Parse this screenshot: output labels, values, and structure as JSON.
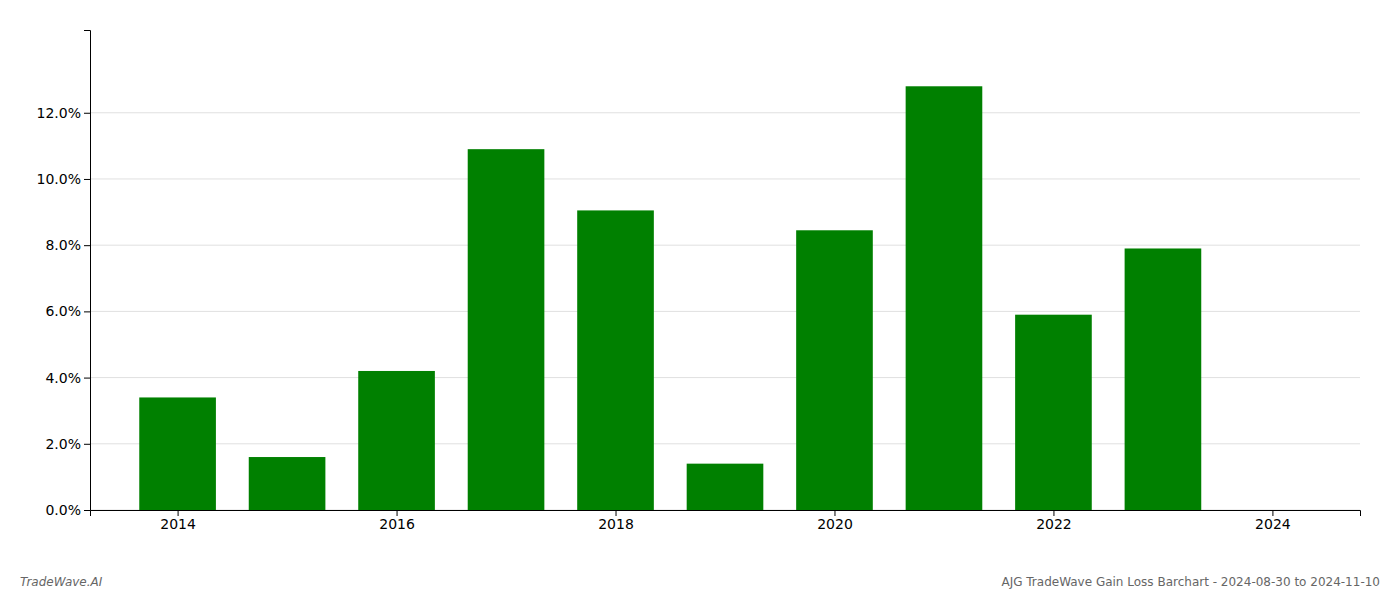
{
  "chart_data": {
    "type": "bar",
    "x": [
      2014,
      2015,
      2016,
      2017,
      2018,
      2019,
      2020,
      2021,
      2022,
      2023
    ],
    "values": [
      0.034,
      0.016,
      0.042,
      0.109,
      0.0905,
      0.014,
      0.0845,
      0.128,
      0.059,
      0.079
    ],
    "color": "#008000",
    "xlim": [
      2013.2,
      2024.8
    ],
    "xticks": [
      2014,
      2016,
      2018,
      2020,
      2022,
      2024
    ],
    "ylim": [
      0.0,
      0.145
    ],
    "yticks": [
      {
        "value": 0.0,
        "label": "0.0%"
      },
      {
        "value": 0.02,
        "label": "2.0%"
      },
      {
        "value": 0.04,
        "label": "4.0%"
      },
      {
        "value": 0.06,
        "label": "6.0%"
      },
      {
        "value": 0.08,
        "label": "8.0%"
      },
      {
        "value": 0.1,
        "label": "10.0%"
      },
      {
        "value": 0.12,
        "label": "12.0%"
      }
    ],
    "grid": true,
    "annotations": [
      "TradeWave.AI",
      "AJG TradeWave Gain Loss Barchart - 2024-08-30 to 2024-11-10"
    ]
  }
}
